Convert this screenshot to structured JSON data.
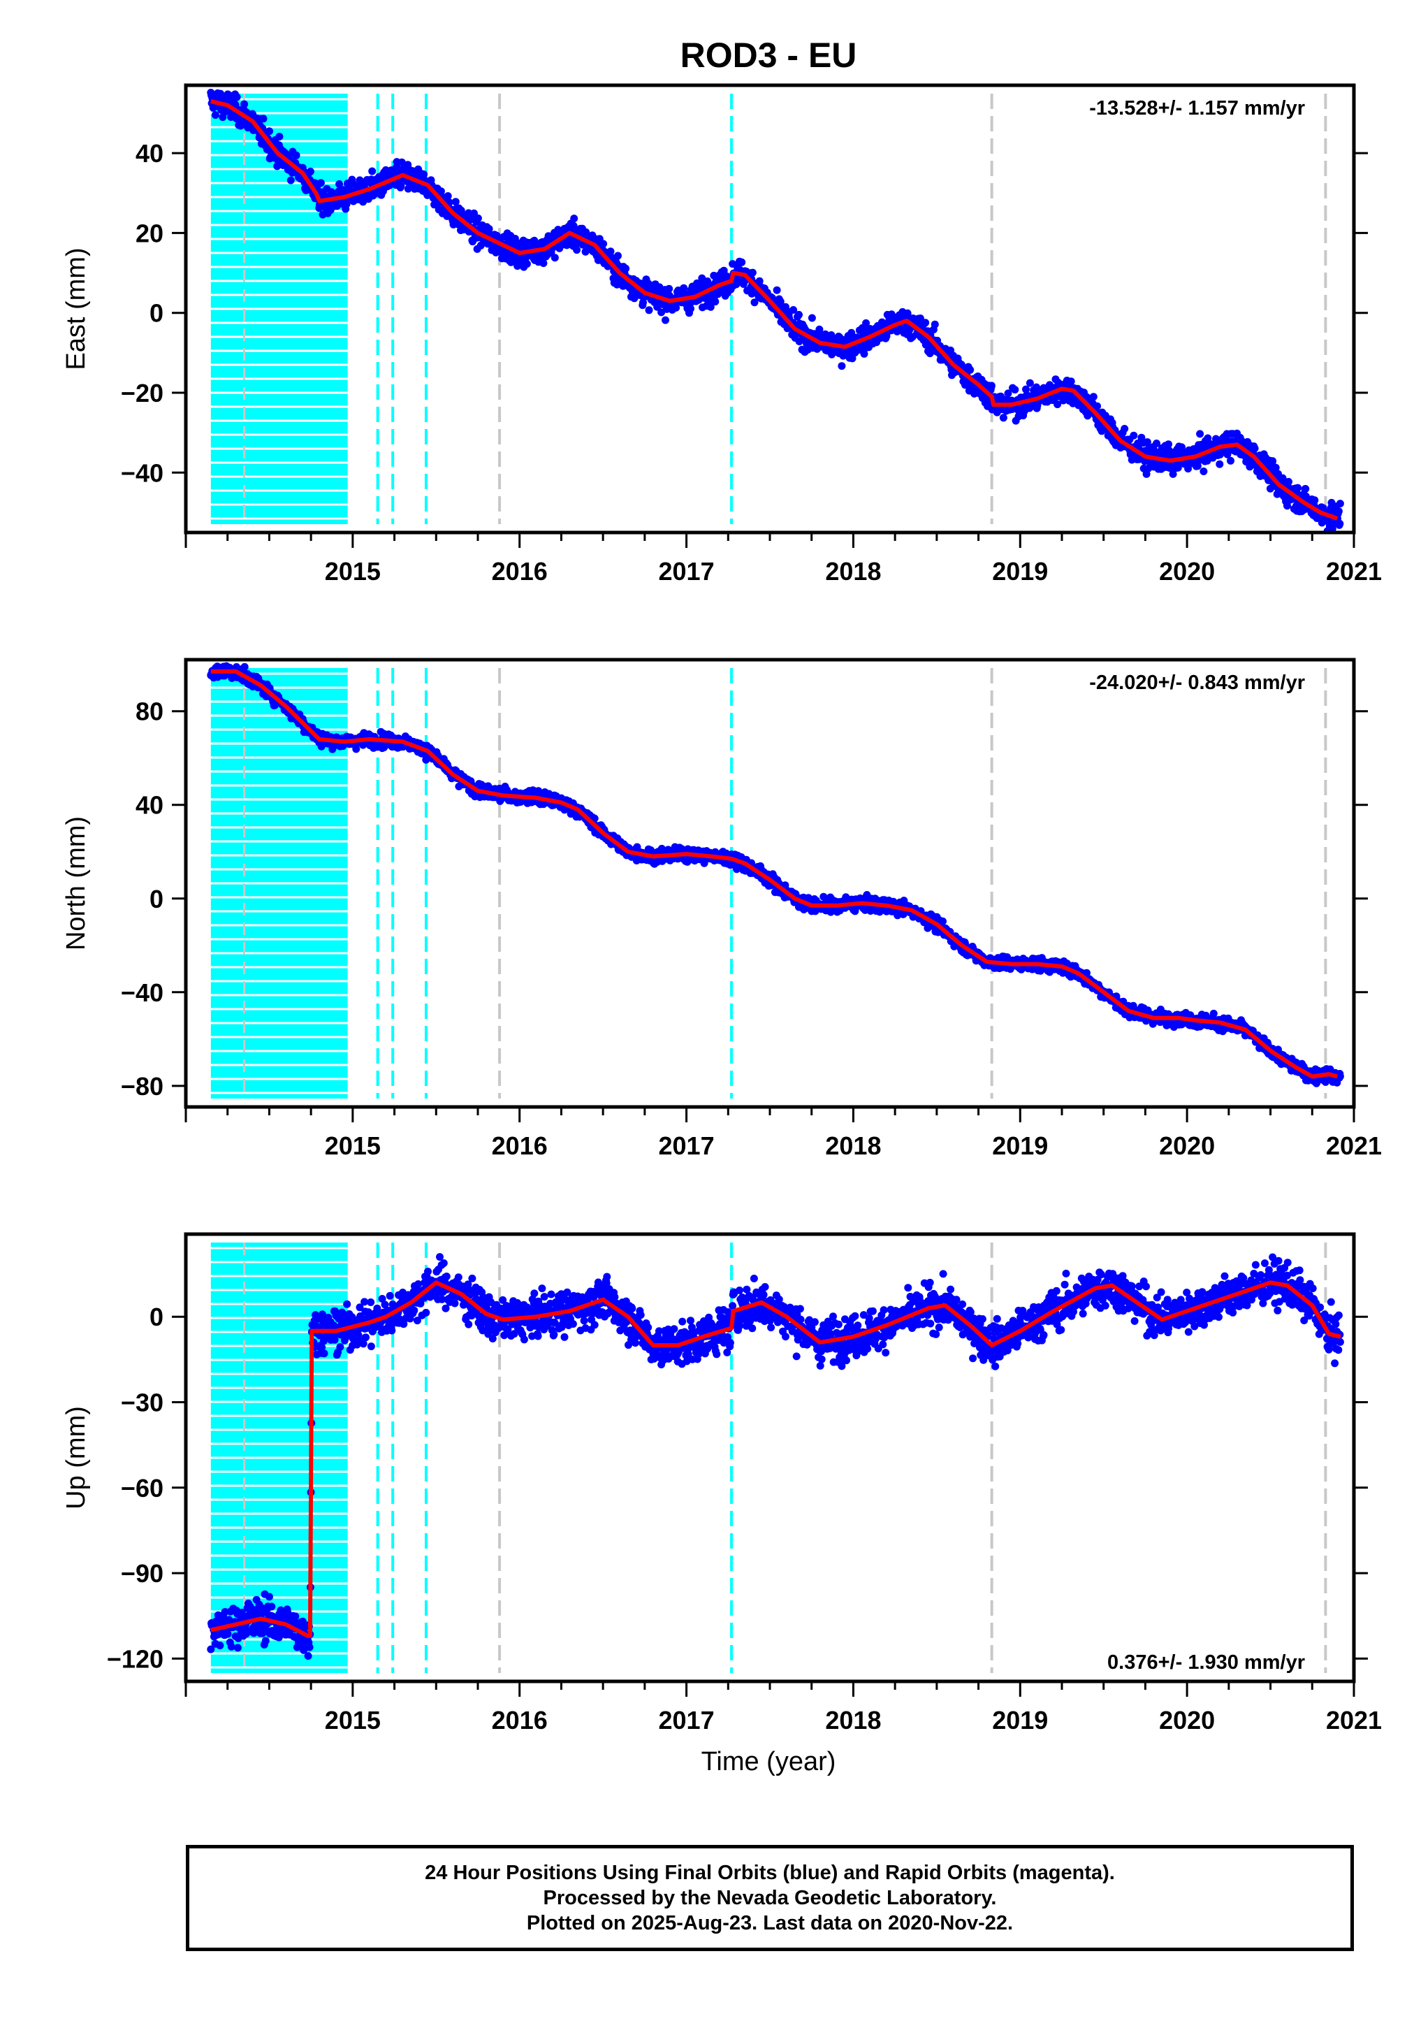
{
  "title": "ROD3 - EU",
  "xlabel": "Time (year)",
  "footer": {
    "line1": "24 Hour Positions Using Final Orbits (blue) and Rapid Orbits (magenta).",
    "line2": "Processed by the Nevada Geodetic Laboratory.",
    "line3": "Plotted on 2025-Aug-23. Last data on 2020-Nov-22."
  },
  "colors": {
    "points": "#0000ff",
    "model": "#ff0000",
    "equipment_change": "#00ffff",
    "earthquake": "#c8c8c8",
    "background": "#ffffff"
  },
  "chart_data": [
    {
      "type": "scatter",
      "component": "East",
      "ylabel": "East (mm)",
      "rate_label": "-13.528+/- 1.157 mm/yr",
      "xlim": [
        2014.0,
        2021.0
      ],
      "ylim": [
        -55,
        57
      ],
      "xticks": [
        2015,
        2016,
        2017,
        2018,
        2019,
        2020,
        2021
      ],
      "yticks": [
        -40,
        -20,
        0,
        20,
        40
      ],
      "model_knots": [
        [
          2014.15,
          53
        ],
        [
          2014.25,
          52
        ],
        [
          2014.4,
          48
        ],
        [
          2014.55,
          40
        ],
        [
          2014.7,
          35
        ],
        [
          2014.78,
          30
        ],
        [
          2014.8,
          28
        ],
        [
          2014.95,
          29
        ],
        [
          2015.1,
          31
        ],
        [
          2015.3,
          34.5
        ],
        [
          2015.45,
          32
        ],
        [
          2015.6,
          25
        ],
        [
          2015.75,
          20
        ],
        [
          2015.9,
          17
        ],
        [
          2016.0,
          15
        ],
        [
          2016.15,
          16
        ],
        [
          2016.3,
          20
        ],
        [
          2016.45,
          17
        ],
        [
          2016.6,
          10
        ],
        [
          2016.75,
          5
        ],
        [
          2016.9,
          3
        ],
        [
          2017.05,
          4
        ],
        [
          2017.2,
          7
        ],
        [
          2017.27,
          8
        ],
        [
          2017.28,
          10
        ],
        [
          2017.35,
          9.5
        ],
        [
          2017.5,
          3
        ],
        [
          2017.65,
          -4
        ],
        [
          2017.8,
          -7.5
        ],
        [
          2017.95,
          -8.5
        ],
        [
          2018.1,
          -6
        ],
        [
          2018.25,
          -3
        ],
        [
          2018.32,
          -2
        ],
        [
          2018.45,
          -6
        ],
        [
          2018.6,
          -13
        ],
        [
          2018.75,
          -18
        ],
        [
          2018.83,
          -21
        ],
        [
          2018.84,
          -23
        ],
        [
          2018.95,
          -23
        ],
        [
          2019.1,
          -21.5
        ],
        [
          2019.25,
          -19
        ],
        [
          2019.32,
          -19.5
        ],
        [
          2019.45,
          -25
        ],
        [
          2019.6,
          -32
        ],
        [
          2019.75,
          -36
        ],
        [
          2019.9,
          -37
        ],
        [
          2020.05,
          -36
        ],
        [
          2020.2,
          -33.5
        ],
        [
          2020.3,
          -33
        ],
        [
          2020.4,
          -36
        ],
        [
          2020.55,
          -43
        ],
        [
          2020.7,
          -47.5
        ],
        [
          2020.8,
          -50
        ],
        [
          2020.9,
          -51.5
        ]
      ],
      "scatter_noise_mm": 2.3,
      "data_start": 2014.15,
      "data_end": 2020.92
    },
    {
      "type": "scatter",
      "component": "North",
      "ylabel": "North (mm)",
      "rate_label": "-24.020+/- 0.843 mm/yr",
      "xlim": [
        2014.0,
        2021.0
      ],
      "ylim": [
        -89,
        102
      ],
      "xticks": [
        2015,
        2016,
        2017,
        2018,
        2019,
        2020,
        2021
      ],
      "yticks": [
        -80,
        -40,
        0,
        40,
        80
      ],
      "model_knots": [
        [
          2014.15,
          97
        ],
        [
          2014.3,
          97
        ],
        [
          2014.45,
          91
        ],
        [
          2014.6,
          82
        ],
        [
          2014.7,
          75
        ],
        [
          2014.8,
          68
        ],
        [
          2014.95,
          67
        ],
        [
          2015.1,
          68
        ],
        [
          2015.3,
          67
        ],
        [
          2015.45,
          63
        ],
        [
          2015.6,
          53
        ],
        [
          2015.75,
          46
        ],
        [
          2015.9,
          44
        ],
        [
          2016.1,
          43
        ],
        [
          2016.25,
          41
        ],
        [
          2016.35,
          38
        ],
        [
          2016.5,
          28
        ],
        [
          2016.65,
          20
        ],
        [
          2016.8,
          18
        ],
        [
          2017.0,
          19
        ],
        [
          2017.15,
          18
        ],
        [
          2017.27,
          17
        ],
        [
          2017.35,
          15
        ],
        [
          2017.5,
          8
        ],
        [
          2017.65,
          0
        ],
        [
          2017.75,
          -3
        ],
        [
          2017.9,
          -3
        ],
        [
          2018.05,
          -2
        ],
        [
          2018.2,
          -3
        ],
        [
          2018.35,
          -5
        ],
        [
          2018.5,
          -11
        ],
        [
          2018.65,
          -20
        ],
        [
          2018.8,
          -27
        ],
        [
          2018.95,
          -28
        ],
        [
          2019.1,
          -28
        ],
        [
          2019.25,
          -29
        ],
        [
          2019.35,
          -32
        ],
        [
          2019.5,
          -40
        ],
        [
          2019.65,
          -48
        ],
        [
          2019.8,
          -51
        ],
        [
          2019.95,
          -51
        ],
        [
          2020.05,
          -52
        ],
        [
          2020.2,
          -53
        ],
        [
          2020.35,
          -56
        ],
        [
          2020.5,
          -65
        ],
        [
          2020.65,
          -72
        ],
        [
          2020.75,
          -76
        ],
        [
          2020.85,
          -75
        ],
        [
          2020.9,
          -76
        ]
      ],
      "scatter_noise_mm": 2.0,
      "data_start": 2014.15,
      "data_end": 2020.92
    },
    {
      "type": "scatter",
      "component": "Up",
      "ylabel": "Up (mm)",
      "rate_label": "0.376+/- 1.930 mm/yr",
      "xlim": [
        2014.0,
        2021.0
      ],
      "ylim": [
        -128,
        29
      ],
      "xticks": [
        2015,
        2016,
        2017,
        2018,
        2019,
        2020,
        2021
      ],
      "yticks": [
        -120,
        -90,
        -60,
        -30,
        0
      ],
      "model_knots": [
        [
          2014.15,
          -110
        ],
        [
          2014.3,
          -108
        ],
        [
          2014.45,
          -106
        ],
        [
          2014.6,
          -108
        ],
        [
          2014.73,
          -112
        ],
        [
          2014.745,
          -112
        ],
        [
          2014.755,
          -5
        ],
        [
          2014.9,
          -5
        ],
        [
          2015.1,
          -2
        ],
        [
          2015.2,
          0
        ],
        [
          2015.35,
          5
        ],
        [
          2015.5,
          12
        ],
        [
          2015.65,
          8
        ],
        [
          2015.8,
          1
        ],
        [
          2015.9,
          -1
        ],
        [
          2016.1,
          0
        ],
        [
          2016.3,
          2
        ],
        [
          2016.5,
          6
        ],
        [
          2016.65,
          0
        ],
        [
          2016.8,
          -10
        ],
        [
          2016.95,
          -10
        ],
        [
          2017.1,
          -7
        ],
        [
          2017.27,
          -4
        ],
        [
          2017.28,
          2
        ],
        [
          2017.45,
          5
        ],
        [
          2017.6,
          0
        ],
        [
          2017.8,
          -9
        ],
        [
          2018.0,
          -7
        ],
        [
          2018.2,
          -3
        ],
        [
          2018.45,
          3
        ],
        [
          2018.55,
          4
        ],
        [
          2018.7,
          -3
        ],
        [
          2018.83,
          -10
        ],
        [
          2019.0,
          -5
        ],
        [
          2019.2,
          2
        ],
        [
          2019.45,
          10
        ],
        [
          2019.55,
          11
        ],
        [
          2019.7,
          5
        ],
        [
          2019.85,
          -1
        ],
        [
          2020.05,
          3
        ],
        [
          2020.25,
          7
        ],
        [
          2020.5,
          12
        ],
        [
          2020.6,
          11
        ],
        [
          2020.75,
          4
        ],
        [
          2020.85,
          -6
        ],
        [
          2020.92,
          -7
        ]
      ],
      "scatter_noise_mm": 5.0,
      "data_start": 2014.15,
      "data_end": 2020.92
    }
  ],
  "equipment_changes": [
    2015.15,
    2015.24,
    2015.44,
    2017.27
  ],
  "earthquakes": [
    2015.88,
    2018.83,
    2020.83
  ],
  "early_bands": {
    "start": 2014.15,
    "end": 2014.97,
    "gray_line": 2014.35
  }
}
